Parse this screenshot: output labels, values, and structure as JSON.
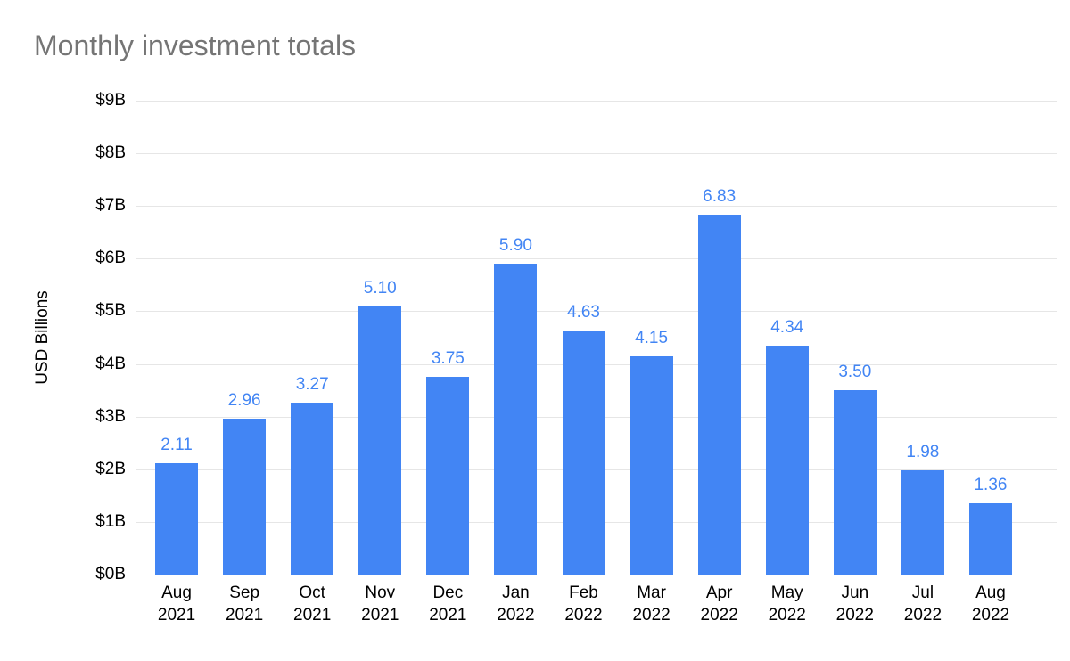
{
  "chart_data": {
    "type": "bar",
    "title": "Monthly investment totals",
    "xlabel": "",
    "ylabel": "USD Billions",
    "categories": [
      "Aug 2021",
      "Sep 2021",
      "Oct 2021",
      "Nov 2021",
      "Dec 2021",
      "Jan 2022",
      "Feb 2022",
      "Mar 2022",
      "Apr 2022",
      "May 2022",
      "Jun 2022",
      "Jul 2022",
      "Aug 2022"
    ],
    "values": [
      2.11,
      2.96,
      3.27,
      5.1,
      3.75,
      5.9,
      4.63,
      4.15,
      6.83,
      4.34,
      3.5,
      1.98,
      1.36
    ],
    "value_labels": [
      "2.11",
      "2.96",
      "3.27",
      "5.10",
      "3.75",
      "5.90",
      "4.63",
      "4.15",
      "6.83",
      "4.34",
      "3.50",
      "1.98",
      "1.36"
    ],
    "ylim": [
      0,
      9
    ],
    "y_ticks": [
      "$0B",
      "$1B",
      "$2B",
      "$3B",
      "$4B",
      "$5B",
      "$6B",
      "$7B",
      "$8B",
      "$9B"
    ],
    "grid": true,
    "legend": "none",
    "bar_color": "#4285f4",
    "value_label_color": "#4285f4",
    "axis_text_color": "#000000",
    "title_color": "#757575"
  }
}
